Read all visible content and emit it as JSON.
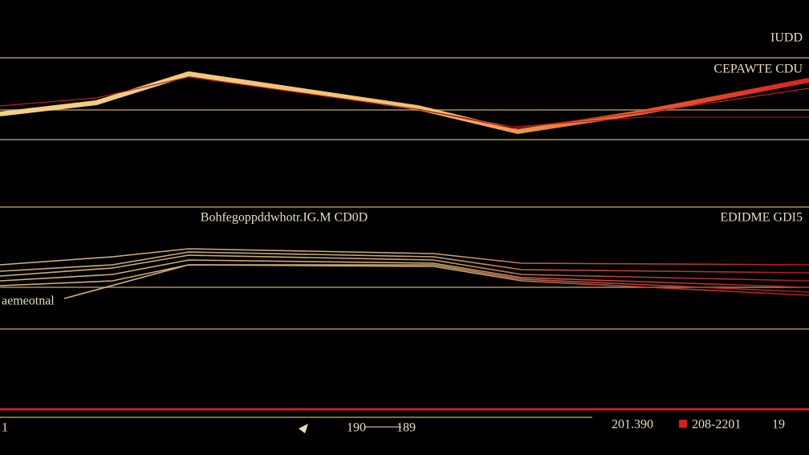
{
  "header": {
    "title": "IUDD",
    "subtitle": "CEPAWTE CDU"
  },
  "middle": {
    "title": "Bohfegoppddwhotr.IG.M CD0D",
    "right_label": "EDIDME GDI5",
    "left_label": "aemeotnal"
  },
  "footer": {
    "left": "1",
    "ticks": [
      "190",
      "189"
    ],
    "legend": [
      "201.390",
      "208-2201"
    ],
    "right": "19"
  }
}
